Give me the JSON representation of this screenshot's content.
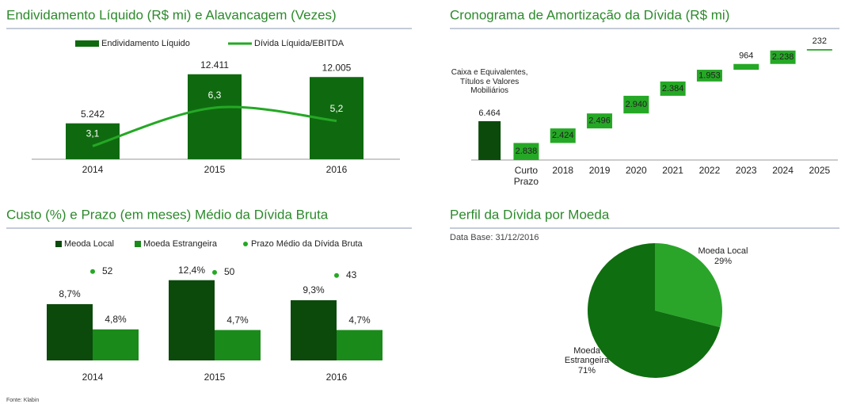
{
  "chart_data": [
    {
      "type": "bar_line",
      "title": "Endividamento Líquido (R$ mi) e Alavancagem (Vezes)",
      "categories": [
        "2014",
        "2015",
        "2016"
      ],
      "series": [
        {
          "name": "Endividamento Líquido",
          "type": "bar",
          "color": "#0f6a0f",
          "values": [
            5242,
            12411,
            12005
          ],
          "value_labels": [
            "5.242",
            "12.411",
            "12.005"
          ]
        },
        {
          "name": "Dívida Líquida/EBITDA",
          "type": "line",
          "axis": "y2",
          "color": "#25a825",
          "values": [
            3.1,
            6.3,
            5.2
          ],
          "value_labels": [
            "3,1",
            "6,3",
            "5,2"
          ]
        }
      ],
      "ylim": [
        0,
        14000
      ],
      "y2lim": [
        2,
        10
      ]
    },
    {
      "type": "waterfall",
      "title": "Cronograma de Amortização da Dívida (R$ mi)",
      "annotation": "Caixa e Equivalentes, Títulos e Valores Mobiliários",
      "categories": [
        null,
        "Curto Prazo",
        "2018",
        "2019",
        "2020",
        "2021",
        "2022",
        "2023",
        "2024",
        "2025"
      ],
      "values": [
        6464,
        2838,
        2424,
        2496,
        2940,
        2384,
        1953,
        964,
        2238,
        232
      ],
      "value_labels": [
        "6.464",
        "2.838",
        "2.424",
        "2.496",
        "2.940",
        "2.384",
        "1.953",
        "964",
        "2.238",
        "232"
      ],
      "initial_color": "#0b4a0b",
      "color": "#25a825",
      "ylim": [
        0,
        19000
      ]
    },
    {
      "type": "grouped_bar_dot",
      "title": "Custo (%) e Prazo (em meses) Médio da Dívida Bruta",
      "categories": [
        "2014",
        "2015",
        "2016"
      ],
      "series": [
        {
          "name": "Meoda Local",
          "type": "bar",
          "color": "#0b4a0b",
          "values": [
            8.7,
            12.4,
            9.3
          ],
          "value_labels": [
            "8,7%",
            "12,4%",
            "9,3%"
          ]
        },
        {
          "name": "Moeda Estrangeira",
          "type": "bar",
          "color": "#1a8a1a",
          "values": [
            4.8,
            4.7,
            4.7
          ],
          "value_labels": [
            "4,8%",
            "4,7%",
            "4,7%"
          ]
        },
        {
          "name": "Prazo Médio da Dívida Bruta",
          "type": "scatter",
          "axis": "y2",
          "color": "#25a825",
          "values": [
            52,
            50,
            43
          ]
        }
      ],
      "ylim": [
        0,
        15.3
      ],
      "y2lim": [
        -150,
        75
      ]
    },
    {
      "type": "pie",
      "title": "Perfil da Dívida por Moeda",
      "subtitle": "Data Base: 31/12/2016",
      "categories": [
        "Moeda Local",
        "Moeda Estrangeira"
      ],
      "values": [
        29,
        71
      ],
      "value_labels": [
        "29%",
        "71%"
      ],
      "colors": [
        "#2aa52a",
        "#0f6e0f"
      ]
    }
  ],
  "source": "Fonte: Klabin"
}
